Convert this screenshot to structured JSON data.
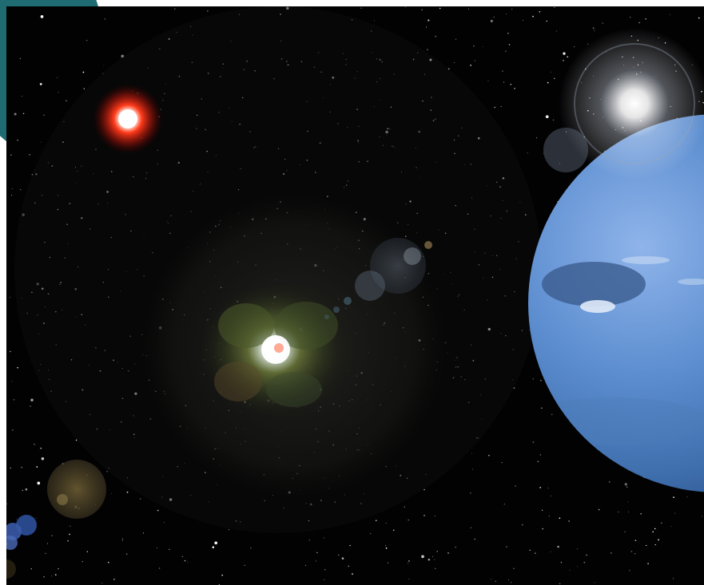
{
  "image": {
    "subject": "space scene",
    "colors": {
      "page_background": "#ffffff",
      "corner_accent": "#1f6b72",
      "space": "#020203",
      "red_star": "#ff3a1a",
      "planet_blue": "#5d8ed0",
      "nebula_green": "#6d7a3a",
      "flare_white": "#ffffff"
    }
  }
}
